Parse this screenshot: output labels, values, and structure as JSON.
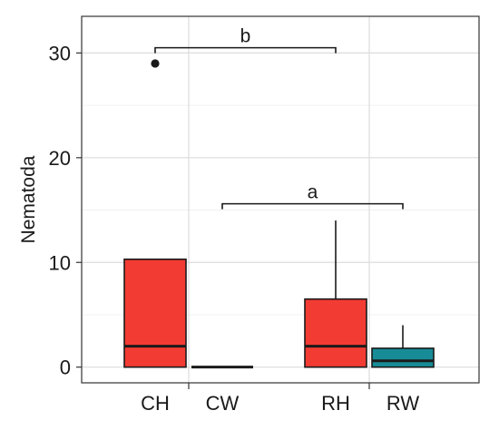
{
  "chart_data": {
    "type": "box",
    "ylabel": "Nematoda",
    "xlabel": "",
    "ylim": [
      -1.5,
      33.5
    ],
    "y_ticks": [
      0,
      10,
      20,
      30
    ],
    "y_tick_labels": [
      "0",
      "10",
      "20",
      "30"
    ],
    "grid": true,
    "categories": [
      "CH",
      "CW",
      "RH",
      "RW"
    ],
    "series": [
      {
        "category": "CH",
        "q1": 0,
        "median": 2,
        "q3": 10.3,
        "whisker_low": 0,
        "whisker_high": 10.3,
        "outliers": [
          29
        ],
        "color": "#f23b33"
      },
      {
        "category": "CW",
        "q1": 0,
        "median": 0,
        "q3": 0,
        "whisker_low": 0,
        "whisker_high": 0,
        "outliers": [],
        "color": "#f23b33"
      },
      {
        "category": "RH",
        "q1": 0,
        "median": 2,
        "q3": 6.5,
        "whisker_low": 0,
        "whisker_high": 14,
        "outliers": [],
        "color": "#f23b33"
      },
      {
        "category": "RW",
        "q1": 0,
        "median": 0.6,
        "q3": 1.8,
        "whisker_low": 0,
        "whisker_high": 4,
        "outliers": [],
        "color": "#178c97"
      }
    ],
    "brackets": [
      {
        "label": "b",
        "from": "CH",
        "to": "RH",
        "y": 30.5
      },
      {
        "label": "a",
        "from": "CW",
        "to": "RW",
        "y": 15.6
      }
    ]
  }
}
